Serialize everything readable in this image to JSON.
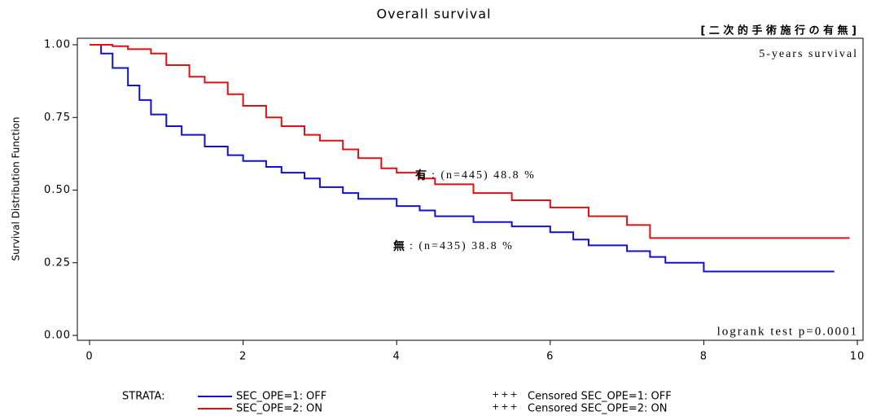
{
  "chart_data": {
    "type": "step",
    "title": "Overall survival",
    "subtitle": "[ 二 次 的 手 術 施 行 の 有 無 ]",
    "ylabel": "Survival Distribution Function",
    "note_top": "5-years survival",
    "note_bottom": "logrank test p=0.0001",
    "xlim": [
      0,
      10
    ],
    "xticks": [
      0,
      2,
      4,
      6,
      8,
      10
    ],
    "ylim": [
      0,
      1
    ],
    "yticks": [
      {
        "value": 0,
        "label": "0.00"
      },
      {
        "value": 0.25,
        "label": "0.25"
      },
      {
        "value": 0.5,
        "label": "0.50"
      },
      {
        "value": 0.75,
        "label": "0.75"
      },
      {
        "value": 1,
        "label": "1.00"
      }
    ],
    "legend_title": "STRATA:",
    "series": [
      {
        "name": "SEC_OPE=1: OFF",
        "censored_name": "Censored SEC_OPE=1: OFF",
        "color": "#1010d0",
        "x": [
          0,
          0.15,
          0.3,
          0.5,
          0.65,
          0.8,
          1.0,
          1.2,
          1.5,
          1.8,
          2.0,
          2.3,
          2.5,
          2.8,
          3.0,
          3.3,
          3.5,
          4.0,
          4.3,
          4.5,
          5.0,
          5.5,
          6.0,
          6.3,
          6.5,
          7.0,
          7.3,
          7.5,
          8.0,
          9.7
        ],
        "values": [
          1.0,
          0.97,
          0.92,
          0.86,
          0.81,
          0.76,
          0.72,
          0.69,
          0.65,
          0.62,
          0.6,
          0.58,
          0.56,
          0.54,
          0.51,
          0.49,
          0.47,
          0.445,
          0.43,
          0.41,
          0.39,
          0.375,
          0.355,
          0.33,
          0.31,
          0.29,
          0.27,
          0.25,
          0.22,
          0.22
        ]
      },
      {
        "name": "SEC_OPE=2: ON",
        "censored_name": "Censored SEC_OPE=2: ON",
        "color": "#e01010",
        "x": [
          0,
          0.3,
          0.5,
          0.8,
          1.0,
          1.3,
          1.5,
          1.8,
          2.0,
          2.3,
          2.5,
          2.8,
          3.0,
          3.3,
          3.5,
          3.8,
          4.0,
          4.3,
          4.5,
          5.0,
          5.5,
          6.0,
          6.5,
          7.0,
          7.3,
          9.9
        ],
        "values": [
          1.0,
          0.995,
          0.985,
          0.97,
          0.93,
          0.89,
          0.87,
          0.83,
          0.79,
          0.75,
          0.72,
          0.69,
          0.67,
          0.64,
          0.61,
          0.575,
          0.56,
          0.54,
          0.52,
          0.49,
          0.465,
          0.44,
          0.41,
          0.38,
          0.335,
          0.335
        ]
      }
    ],
    "annotations": [
      {
        "marker": "有",
        "text": ": (n=445) 48.8 %"
      },
      {
        "marker": "無",
        "text": ": (n=435) 38.8 %"
      }
    ]
  }
}
